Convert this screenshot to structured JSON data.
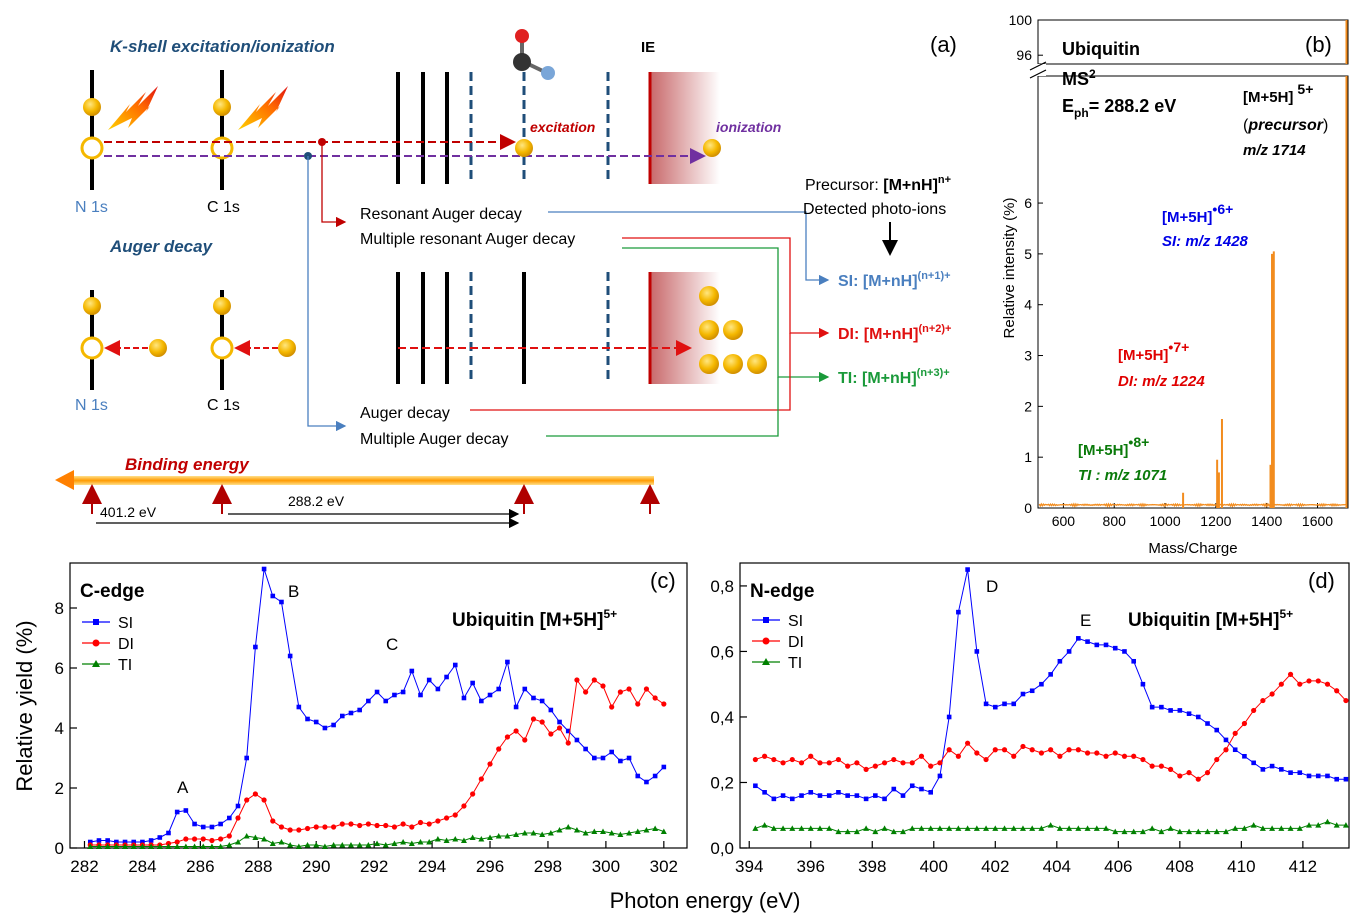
{
  "panel_a": {
    "label": "(a)",
    "kshell_title": "K-shell excitation/ionization",
    "auger_title": "Auger decay",
    "ie_label": "IE",
    "excitation_label": "excitation",
    "ionization_label": "ionization",
    "n1s_label": "N 1s",
    "c1s_label": "C 1s",
    "n1s_label_2": "N 1s",
    "c1s_label_2": "C 1s",
    "precursor_prefix": "Precursor: ",
    "precursor_formula": "[M+nH]",
    "precursor_sup": "n+",
    "detected_label": "Detected photo-ions",
    "decay_resonant": "Resonant Auger decay",
    "decay_multi_resonant": "Multiple resonant Auger decay",
    "decay_auger": "Auger decay",
    "decay_multi_auger": "Multiple Auger decay",
    "si_label": "SI: [M+nH]",
    "si_sup": "(n+1)+",
    "di_label": "DI: [M+nH]",
    "di_sup": "(n+2)+",
    "ti_label": "TI: [M+nH]",
    "ti_sup": "(n+3)+",
    "binding_label": "Binding energy",
    "e_401": "401.2 eV",
    "e_288": "288.2 eV",
    "colors": {
      "si": "#4a7fbf",
      "di": "#e01010",
      "ti": "#1a9a3a",
      "ionization": "#7030a0",
      "excitation": "#c00000",
      "title": "#1f4e79"
    }
  },
  "panel_b": {
    "label": "(b)",
    "title1": "Ubiquitin",
    "title2": "MS",
    "title2_sup": "2",
    "eph": "E",
    "eph_sub": "ph",
    "eph_val": "= 288.2 eV",
    "precursor_formula": "[M+5H]",
    "precursor_sup": "5+",
    "precursor_name": "precursor",
    "precursor_mz": "m/z 1714",
    "si_formula": "[M+5H]",
    "si_sup": "•6+",
    "si_mz": "SI: m/z 1428",
    "di_formula": "[M+5H]",
    "di_sup": "•7+",
    "di_mz": "DI: m/z 1224",
    "ti_formula": "[M+5H]",
    "ti_sup": "•8+",
    "ti_mz": "TI : m/z 1071",
    "ylabel": "Relative intensity (%)",
    "xlabel": "Mass/Charge",
    "color": "#f28c1e"
  },
  "panel_c": {
    "label": "(c)",
    "edge": "C-edge",
    "title": "Ubiquitin [M+5H]",
    "title_sup": "5+",
    "peak_a": "A",
    "peak_b": "B",
    "peak_c": "C"
  },
  "panel_d": {
    "label": "(d)",
    "edge": "N-edge",
    "title": "Ubiquitin [M+5H]",
    "title_sup": "5+",
    "peak_d": "D",
    "peak_e": "E"
  },
  "shared": {
    "ylabel": "Relative yield (%)",
    "xlabel": "Photon energy (eV)"
  },
  "chart_data": [
    {
      "type": "line",
      "panel": "b",
      "xlabel": "Mass/Charge",
      "ylabel": "Relative intensity (%)",
      "xlim": [
        500,
        1720
      ],
      "ylim_lower": [
        0,
        8.5
      ],
      "ylim_upper": [
        95,
        100
      ],
      "xticks": [
        "600",
        "800",
        "1000",
        "1200",
        "1400",
        "1600"
      ],
      "yticks": [
        "0",
        "1",
        "2",
        "3",
        "4",
        "5",
        "6"
      ],
      "yticks_upper": [
        "96",
        "100"
      ],
      "peaks": [
        {
          "mz": 1071,
          "value": 0.3
        },
        {
          "mz": 1205,
          "value": 0.95
        },
        {
          "mz": 1212,
          "value": 0.7
        },
        {
          "mz": 1224,
          "value": 1.75
        },
        {
          "mz": 1415,
          "value": 0.85
        },
        {
          "mz": 1421,
          "value": 5.0
        },
        {
          "mz": 1428,
          "value": 5.05
        },
        {
          "mz": 1714,
          "value": 100
        }
      ]
    },
    {
      "type": "line",
      "panel": "c",
      "title": "Ubiquitin [M+5H]5+",
      "xlabel": "Photon energy (eV)",
      "ylabel": "Relative yield (%)",
      "xlim": [
        281.5,
        302.8
      ],
      "ylim": [
        0,
        9.5
      ],
      "xticks": [
        "282",
        "284",
        "286",
        "288",
        "290",
        "292",
        "294",
        "296",
        "298",
        "300",
        "302"
      ],
      "yticks": [
        "0",
        "2",
        "4",
        "6",
        "8"
      ],
      "x": [
        282.2,
        282.5,
        282.8,
        283.1,
        283.4,
        283.7,
        284.0,
        284.3,
        284.6,
        284.9,
        285.2,
        285.5,
        285.8,
        286.1,
        286.4,
        286.7,
        287.0,
        287.3,
        287.6,
        287.9,
        288.2,
        288.5,
        288.8,
        289.1,
        289.4,
        289.7,
        290.0,
        290.3,
        290.6,
        290.9,
        291.2,
        291.5,
        291.8,
        292.1,
        292.4,
        292.7,
        293.0,
        293.3,
        293.6,
        293.9,
        294.2,
        294.5,
        294.8,
        295.1,
        295.4,
        295.7,
        296.0,
        296.3,
        296.6,
        296.9,
        297.2,
        297.5,
        297.8,
        298.1,
        298.4,
        298.7,
        299.0,
        299.3,
        299.6,
        299.9,
        300.2,
        300.5,
        300.8,
        301.1,
        301.4,
        301.7,
        302.0
      ],
      "series": [
        {
          "name": "SI",
          "color": "#0000ff",
          "marker": "square",
          "values": [
            0.2,
            0.25,
            0.25,
            0.2,
            0.2,
            0.2,
            0.2,
            0.25,
            0.35,
            0.5,
            1.2,
            1.25,
            0.8,
            0.7,
            0.7,
            0.8,
            1.0,
            1.4,
            3.0,
            6.7,
            9.3,
            8.4,
            8.2,
            6.4,
            4.7,
            4.3,
            4.2,
            4.0,
            4.1,
            4.4,
            4.5,
            4.6,
            4.9,
            5.2,
            4.9,
            5.1,
            5.2,
            5.9,
            5.1,
            5.6,
            5.3,
            5.7,
            6.1,
            5.0,
            5.5,
            4.9,
            5.1,
            5.3,
            6.2,
            4.7,
            5.3,
            5.0,
            4.9,
            4.6,
            4.2,
            3.9,
            3.6,
            3.3,
            3.0,
            3.0,
            3.2,
            2.9,
            3.0,
            2.4,
            2.2,
            2.4,
            2.7
          ]
        },
        {
          "name": "DI",
          "color": "#ff0000",
          "marker": "circle",
          "values": [
            0.1,
            0.1,
            0.1,
            0.1,
            0.1,
            0.1,
            0.1,
            0.1,
            0.1,
            0.15,
            0.2,
            0.3,
            0.3,
            0.3,
            0.25,
            0.3,
            0.4,
            1.0,
            1.6,
            1.8,
            1.6,
            0.9,
            0.7,
            0.6,
            0.6,
            0.65,
            0.7,
            0.7,
            0.7,
            0.8,
            0.8,
            0.75,
            0.8,
            0.75,
            0.75,
            0.7,
            0.8,
            0.7,
            0.85,
            0.8,
            0.9,
            1.0,
            1.1,
            1.4,
            1.8,
            2.3,
            2.8,
            3.3,
            3.7,
            3.9,
            3.6,
            4.3,
            4.2,
            3.8,
            4.0,
            3.5,
            5.6,
            5.2,
            5.6,
            5.4,
            4.7,
            5.2,
            5.3,
            4.8,
            5.3,
            5.0,
            4.8
          ]
        },
        {
          "name": "TI",
          "color": "#008000",
          "marker": "triangle",
          "values": [
            0.05,
            0.05,
            0.05,
            0.05,
            0.05,
            0.05,
            0.05,
            0.05,
            0.05,
            0.05,
            0.05,
            0.05,
            0.05,
            0.05,
            0.05,
            0.05,
            0.1,
            0.2,
            0.4,
            0.35,
            0.3,
            0.15,
            0.2,
            0.1,
            0.05,
            0.1,
            0.1,
            0.05,
            0.1,
            0.1,
            0.1,
            0.1,
            0.1,
            0.15,
            0.1,
            0.15,
            0.2,
            0.15,
            0.2,
            0.2,
            0.3,
            0.25,
            0.3,
            0.25,
            0.35,
            0.3,
            0.35,
            0.4,
            0.4,
            0.45,
            0.5,
            0.5,
            0.45,
            0.5,
            0.6,
            0.7,
            0.6,
            0.5,
            0.55,
            0.55,
            0.5,
            0.45,
            0.5,
            0.55,
            0.6,
            0.65,
            0.55
          ]
        }
      ]
    },
    {
      "type": "line",
      "panel": "d",
      "title": "Ubiquitin [M+5H]5+",
      "xlabel": "Photon energy (eV)",
      "ylabel": "Relative yield (%)",
      "xlim": [
        393.7,
        413.5
      ],
      "ylim": [
        0,
        0.87
      ],
      "xticks": [
        "394",
        "396",
        "398",
        "400",
        "402",
        "404",
        "406",
        "408",
        "410",
        "412"
      ],
      "yticks": [
        "0,0",
        "0,2",
        "0,4",
        "0,6",
        "0,8"
      ],
      "x": [
        394.2,
        394.5,
        394.8,
        395.1,
        395.4,
        395.7,
        396.0,
        396.3,
        396.6,
        396.9,
        397.2,
        397.5,
        397.8,
        398.1,
        398.4,
        398.7,
        399.0,
        399.3,
        399.6,
        399.9,
        400.2,
        400.5,
        400.8,
        401.1,
        401.4,
        401.7,
        402.0,
        402.3,
        402.6,
        402.9,
        403.2,
        403.5,
        403.8,
        404.1,
        404.4,
        404.7,
        405.0,
        405.3,
        405.6,
        405.9,
        406.2,
        406.5,
        406.8,
        407.1,
        407.4,
        407.7,
        408.0,
        408.3,
        408.6,
        408.9,
        409.2,
        409.5,
        409.8,
        410.1,
        410.4,
        410.7,
        411.0,
        411.3,
        411.6,
        411.9,
        412.2,
        412.5,
        412.8,
        413.1,
        413.4
      ],
      "series": [
        {
          "name": "SI",
          "color": "#0000ff",
          "marker": "square",
          "values": [
            0.19,
            0.17,
            0.15,
            0.16,
            0.15,
            0.16,
            0.17,
            0.16,
            0.16,
            0.17,
            0.16,
            0.16,
            0.15,
            0.16,
            0.15,
            0.18,
            0.16,
            0.19,
            0.18,
            0.17,
            0.22,
            0.4,
            0.72,
            0.85,
            0.6,
            0.44,
            0.43,
            0.44,
            0.44,
            0.47,
            0.48,
            0.5,
            0.53,
            0.57,
            0.6,
            0.64,
            0.63,
            0.62,
            0.62,
            0.61,
            0.6,
            0.57,
            0.5,
            0.43,
            0.43,
            0.42,
            0.42,
            0.41,
            0.4,
            0.38,
            0.36,
            0.33,
            0.3,
            0.28,
            0.26,
            0.24,
            0.25,
            0.24,
            0.23,
            0.23,
            0.22,
            0.22,
            0.22,
            0.21,
            0.21
          ]
        },
        {
          "name": "DI",
          "color": "#ff0000",
          "marker": "circle",
          "values": [
            0.27,
            0.28,
            0.27,
            0.26,
            0.27,
            0.26,
            0.28,
            0.26,
            0.26,
            0.27,
            0.25,
            0.26,
            0.24,
            0.25,
            0.26,
            0.27,
            0.26,
            0.26,
            0.28,
            0.25,
            0.26,
            0.3,
            0.28,
            0.32,
            0.29,
            0.27,
            0.3,
            0.3,
            0.28,
            0.31,
            0.3,
            0.29,
            0.3,
            0.28,
            0.3,
            0.3,
            0.29,
            0.29,
            0.28,
            0.29,
            0.28,
            0.28,
            0.27,
            0.25,
            0.25,
            0.24,
            0.22,
            0.23,
            0.21,
            0.23,
            0.27,
            0.3,
            0.35,
            0.38,
            0.42,
            0.45,
            0.47,
            0.5,
            0.53,
            0.5,
            0.51,
            0.51,
            0.5,
            0.48,
            0.45
          ]
        },
        {
          "name": "TI",
          "color": "#008000",
          "marker": "triangle",
          "values": [
            0.06,
            0.07,
            0.06,
            0.06,
            0.06,
            0.06,
            0.06,
            0.06,
            0.06,
            0.05,
            0.05,
            0.05,
            0.06,
            0.05,
            0.06,
            0.05,
            0.05,
            0.06,
            0.06,
            0.06,
            0.06,
            0.06,
            0.06,
            0.06,
            0.06,
            0.06,
            0.06,
            0.06,
            0.06,
            0.06,
            0.06,
            0.06,
            0.07,
            0.06,
            0.06,
            0.06,
            0.06,
            0.06,
            0.06,
            0.05,
            0.05,
            0.05,
            0.05,
            0.06,
            0.05,
            0.06,
            0.05,
            0.05,
            0.05,
            0.05,
            0.05,
            0.05,
            0.06,
            0.06,
            0.07,
            0.06,
            0.06,
            0.06,
            0.06,
            0.06,
            0.07,
            0.07,
            0.08,
            0.07,
            0.07
          ]
        }
      ]
    }
  ]
}
